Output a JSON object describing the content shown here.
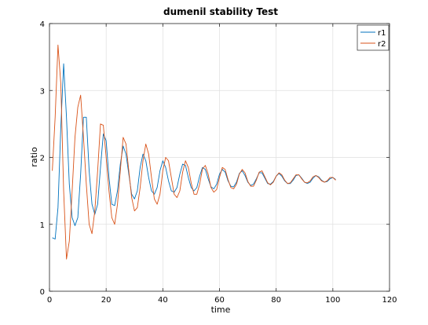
{
  "chart_data": {
    "type": "line",
    "title": "dumenil stability Test",
    "xlabel": "time",
    "ylabel": "ratio",
    "xlim": [
      0,
      120
    ],
    "ylim": [
      0,
      4
    ],
    "xticks": [
      0,
      20,
      40,
      60,
      80,
      100,
      120
    ],
    "yticks": [
      0,
      1,
      2,
      3,
      4
    ],
    "grid": true,
    "legend_position": "top-right",
    "series": [
      {
        "name": "r1",
        "color": "#0072bd",
        "x": [
          1,
          2,
          3,
          4,
          5,
          6,
          7,
          8,
          9,
          10,
          11,
          12,
          13,
          14,
          15,
          16,
          17,
          18,
          19,
          20,
          21,
          22,
          23,
          24,
          25,
          26,
          27,
          28,
          29,
          30,
          31,
          32,
          33,
          34,
          35,
          36,
          37,
          38,
          39,
          40,
          41,
          42,
          43,
          44,
          45,
          46,
          47,
          48,
          49,
          50,
          51,
          52,
          53,
          54,
          55,
          56,
          57,
          58,
          59,
          60,
          61,
          62,
          63,
          64,
          65,
          66,
          67,
          68,
          69,
          70,
          71,
          72,
          73,
          74,
          75,
          76,
          77,
          78,
          79,
          80,
          81,
          82,
          83,
          84,
          85,
          86,
          87,
          88,
          89,
          90,
          91,
          92,
          93,
          94,
          95,
          96,
          97,
          98,
          99,
          100,
          101
        ],
        "y": [
          0.8,
          0.78,
          1.25,
          2.45,
          3.4,
          2.6,
          1.6,
          1.1,
          0.98,
          1.1,
          1.75,
          2.6,
          2.6,
          1.8,
          1.3,
          1.15,
          1.3,
          1.85,
          2.35,
          2.25,
          1.7,
          1.3,
          1.28,
          1.5,
          1.9,
          2.17,
          2.05,
          1.75,
          1.45,
          1.38,
          1.5,
          1.85,
          2.05,
          1.95,
          1.7,
          1.5,
          1.45,
          1.55,
          1.8,
          1.95,
          1.85,
          1.65,
          1.5,
          1.48,
          1.55,
          1.75,
          1.9,
          1.88,
          1.7,
          1.55,
          1.5,
          1.55,
          1.72,
          1.85,
          1.82,
          1.68,
          1.56,
          1.53,
          1.6,
          1.75,
          1.82,
          1.78,
          1.65,
          1.57,
          1.56,
          1.63,
          1.76,
          1.8,
          1.73,
          1.63,
          1.58,
          1.6,
          1.68,
          1.77,
          1.77,
          1.69,
          1.61,
          1.6,
          1.64,
          1.72,
          1.76,
          1.72,
          1.65,
          1.61,
          1.61,
          1.66,
          1.73,
          1.74,
          1.69,
          1.63,
          1.61,
          1.63,
          1.69,
          1.73,
          1.71,
          1.66,
          1.63,
          1.64,
          1.68,
          1.7,
          1.67
        ]
      },
      {
        "name": "r2",
        "color": "#d95319",
        "x": [
          1,
          2,
          3,
          4,
          5,
          6,
          7,
          8,
          9,
          10,
          11,
          12,
          13,
          14,
          15,
          16,
          17,
          18,
          19,
          20,
          21,
          22,
          23,
          24,
          25,
          26,
          27,
          28,
          29,
          30,
          31,
          32,
          33,
          34,
          35,
          36,
          37,
          38,
          39,
          40,
          41,
          42,
          43,
          44,
          45,
          46,
          47,
          48,
          49,
          50,
          51,
          52,
          53,
          54,
          55,
          56,
          57,
          58,
          59,
          60,
          61,
          62,
          63,
          64,
          65,
          66,
          67,
          68,
          69,
          70,
          71,
          72,
          73,
          74,
          75,
          76,
          77,
          78,
          79,
          80,
          81,
          82,
          83,
          84,
          85,
          86,
          87,
          88,
          89,
          90,
          91,
          92,
          93,
          94,
          95,
          96,
          97,
          98,
          99,
          100,
          101
        ],
        "y": [
          1.8,
          2.6,
          3.68,
          3.1,
          1.5,
          0.48,
          0.75,
          1.5,
          2.3,
          2.75,
          2.93,
          2.3,
          1.6,
          1.0,
          0.86,
          1.2,
          1.8,
          2.5,
          2.48,
          2.0,
          1.5,
          1.1,
          1.0,
          1.3,
          1.8,
          2.3,
          2.2,
          1.8,
          1.4,
          1.2,
          1.25,
          1.55,
          1.95,
          2.2,
          2.05,
          1.7,
          1.38,
          1.3,
          1.45,
          1.8,
          2.0,
          1.95,
          1.7,
          1.45,
          1.4,
          1.5,
          1.78,
          1.95,
          1.85,
          1.62,
          1.45,
          1.45,
          1.6,
          1.83,
          1.88,
          1.75,
          1.55,
          1.48,
          1.52,
          1.7,
          1.85,
          1.82,
          1.67,
          1.55,
          1.53,
          1.6,
          1.75,
          1.82,
          1.77,
          1.64,
          1.57,
          1.57,
          1.66,
          1.78,
          1.8,
          1.71,
          1.62,
          1.59,
          1.63,
          1.72,
          1.77,
          1.74,
          1.66,
          1.61,
          1.62,
          1.68,
          1.74,
          1.74,
          1.68,
          1.63,
          1.62,
          1.65,
          1.71,
          1.73,
          1.7,
          1.65,
          1.63,
          1.65,
          1.7,
          1.7,
          1.66
        ]
      }
    ]
  }
}
